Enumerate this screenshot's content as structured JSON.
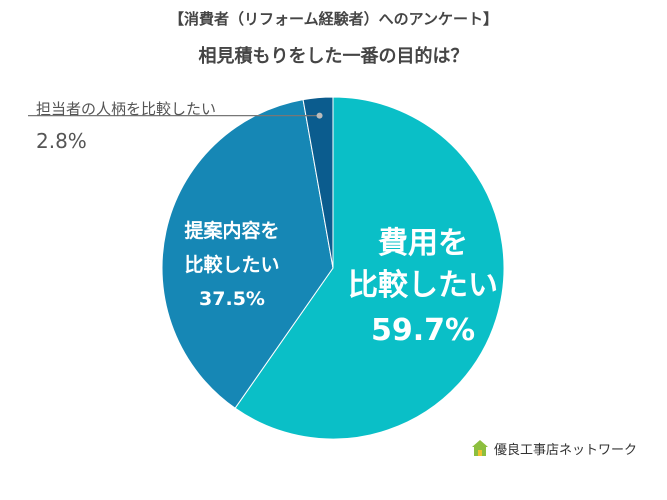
{
  "header": {
    "survey_title": "【消費者（リフォーム経験者）へのアンケート】",
    "question": "相見積もりをした一番の目的は？"
  },
  "chart_data": {
    "type": "pie",
    "categories": [
      "費用を比較したい",
      "提案内容を比較したい",
      "担当者の人柄を比較したい"
    ],
    "values": [
      59.7,
      37.5,
      2.8
    ],
    "labels": [
      {
        "lines": [
          "費用を",
          "比較したい"
        ],
        "value_text": "59.7%"
      },
      {
        "lines": [
          "提案内容を",
          "比較したい"
        ],
        "value_text": "37.5%"
      },
      {
        "lines": [
          "担当者の人柄を比較したい"
        ],
        "value_text": "2.8%"
      }
    ],
    "colors": [
      "#0ABFC7",
      "#1687B5",
      "#0B5C8E"
    ],
    "start": "12 o'clock",
    "direction": "clockwise"
  },
  "logo": {
    "text": "優良工事店ネットワーク",
    "icon": "house-icon"
  }
}
